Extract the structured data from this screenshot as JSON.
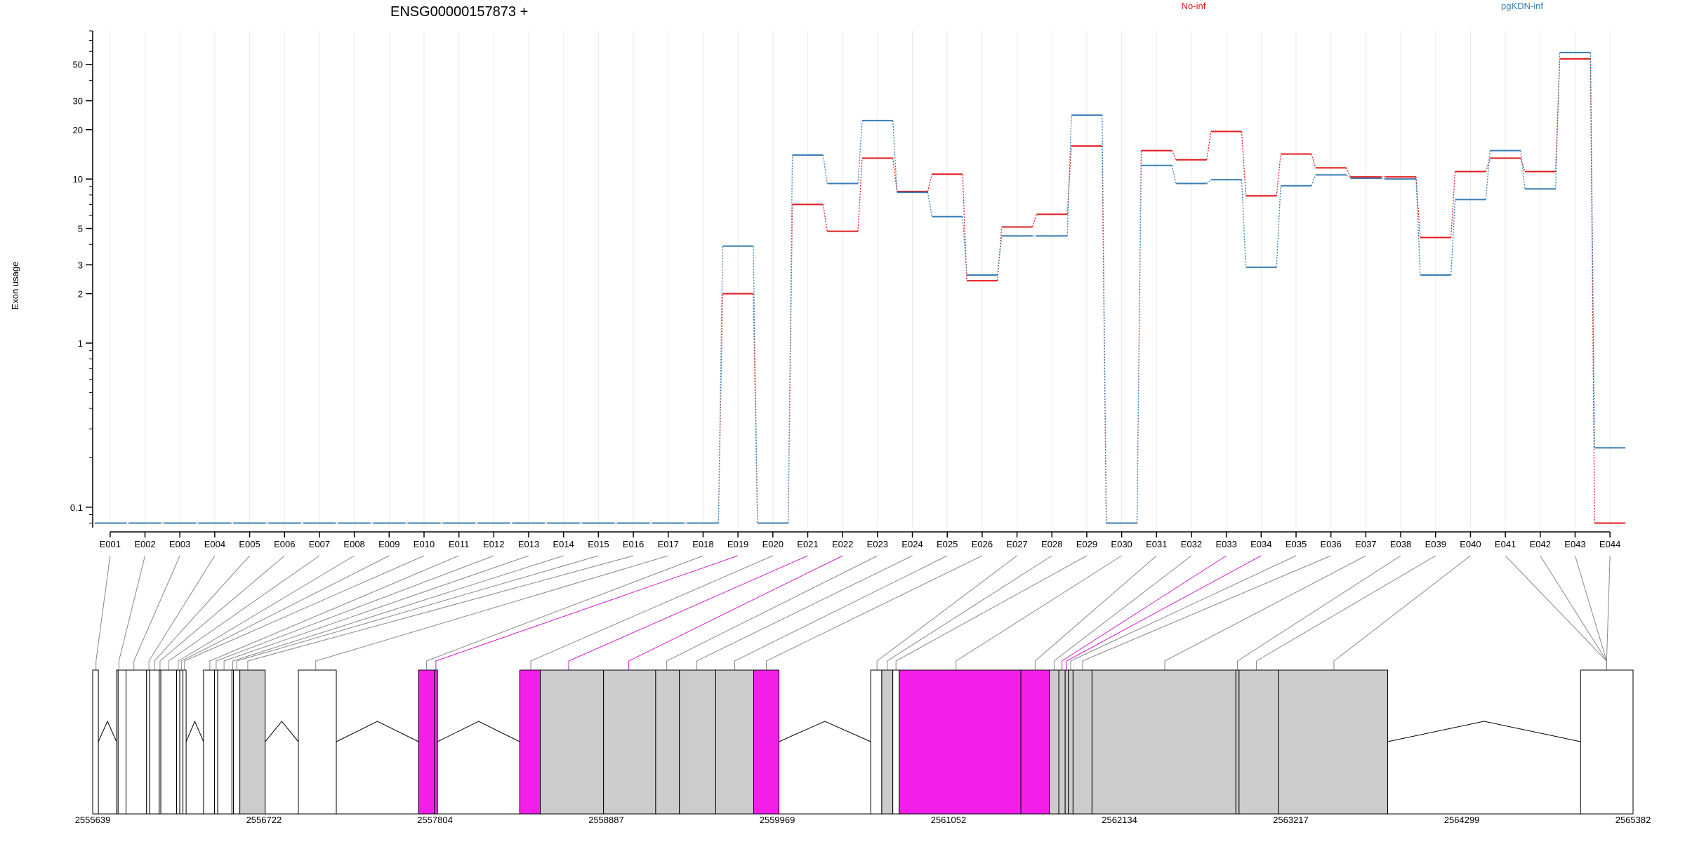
{
  "chart_data": {
    "type": "line",
    "title": "ENSG00000157873 +",
    "ylabel": "Exon usage",
    "xlabel": "",
    "yscale": "log",
    "ylim": [
      0.075,
      80
    ],
    "yticks": [
      "0.1",
      "1",
      "2",
      "3",
      "5",
      "10",
      "20",
      "30",
      "50"
    ],
    "ytick_values": [
      0.1,
      1,
      2,
      3,
      5,
      10,
      20,
      30,
      50
    ],
    "grid": "vertical",
    "legend_placement": "top",
    "categories": [
      "E001",
      "E002",
      "E003",
      "E004",
      "E005",
      "E006",
      "E007",
      "E008",
      "E009",
      "E010",
      "E011",
      "E012",
      "E013",
      "E014",
      "E015",
      "E016",
      "E017",
      "E018",
      "E019",
      "E020",
      "E021",
      "E022",
      "E023",
      "E024",
      "E025",
      "E026",
      "E027",
      "E028",
      "E029",
      "E030",
      "E031",
      "E032",
      "E033",
      "E034",
      "E035",
      "E036",
      "E037",
      "E038",
      "E039",
      "E040",
      "E041",
      "E042",
      "E043",
      "E044"
    ],
    "series": [
      {
        "name": "No-inf",
        "color": "#e41a1c",
        "values": [
          0.08,
          0.08,
          0.08,
          0.08,
          0.08,
          0.08,
          0.08,
          0.08,
          0.08,
          0.08,
          0.08,
          0.08,
          0.08,
          0.08,
          0.08,
          0.08,
          0.08,
          0.08,
          2.0,
          0.08,
          7.0,
          4.8,
          13.4,
          8.4,
          10.7,
          2.4,
          5.1,
          6.1,
          15.9,
          0.08,
          14.9,
          13.1,
          19.5,
          7.9,
          14.2,
          11.7,
          10.3,
          10.3,
          4.4,
          11.1,
          13.4,
          11.1,
          54.0,
          0.08
        ]
      },
      {
        "name": "pgKDN-inf",
        "color": "#377eb8",
        "values": [
          0.08,
          0.08,
          0.08,
          0.08,
          0.08,
          0.08,
          0.08,
          0.08,
          0.08,
          0.08,
          0.08,
          0.08,
          0.08,
          0.08,
          0.08,
          0.08,
          0.08,
          0.08,
          3.9,
          0.08,
          14.0,
          9.4,
          22.7,
          8.3,
          5.9,
          2.6,
          4.5,
          4.5,
          24.5,
          0.08,
          12.1,
          9.4,
          9.9,
          2.9,
          9.1,
          10.6,
          10.1,
          10.0,
          2.6,
          7.5,
          14.9,
          8.7,
          59.0,
          0.23
        ]
      }
    ],
    "gene_model": {
      "coord_ticks": [
        "2555639",
        "2556722",
        "2557804",
        "2558887",
        "2559969",
        "2561052",
        "2562134",
        "2563217",
        "2564299",
        "2565382"
      ],
      "coord_tick_values": [
        2555639,
        2556722,
        2557804,
        2558887,
        2559969,
        2561052,
        2562134,
        2563217,
        2564299,
        2565382
      ],
      "exon_fill_colors": {
        "not_significant": "#ffffff",
        "covered": "#cccccc",
        "significant": "#f31fe8"
      },
      "blocks": [
        [
          2555639,
          2555675,
          "w"
        ],
        [
          2555790,
          2555800,
          "w"
        ],
        [
          2555800,
          2555850,
          "w"
        ],
        [
          2555850,
          2555980,
          "w"
        ],
        [
          2555980,
          2556000,
          "w"
        ],
        [
          2556000,
          2556060,
          "w"
        ],
        [
          2556060,
          2556070,
          "w"
        ],
        [
          2556070,
          2556170,
          "w"
        ],
        [
          2556170,
          2556190,
          "w"
        ],
        [
          2556190,
          2556210,
          "w"
        ],
        [
          2556210,
          2556230,
          "w"
        ],
        [
          2556340,
          2556410,
          "w"
        ],
        [
          2556410,
          2556430,
          "w"
        ],
        [
          2556430,
          2556520,
          "w"
        ],
        [
          2556520,
          2556530,
          "w"
        ],
        [
          2556530,
          2556570,
          "w"
        ],
        [
          2556570,
          2556730,
          "g"
        ],
        [
          2556940,
          2557180,
          "w"
        ],
        [
          2557700,
          2557800,
          "m"
        ],
        [
          2557800,
          2557820,
          "m"
        ],
        [
          2558340,
          2558470,
          "m"
        ],
        [
          2558470,
          2558870,
          "g"
        ],
        [
          2558870,
          2559200,
          "g"
        ],
        [
          2559200,
          2559350,
          "g"
        ],
        [
          2559350,
          2559580,
          "g"
        ],
        [
          2559580,
          2559820,
          "g"
        ],
        [
          2559820,
          2559980,
          "m"
        ],
        [
          2560560,
          2560630,
          "w"
        ],
        [
          2560630,
          2560700,
          "g"
        ],
        [
          2560700,
          2560740,
          "w"
        ],
        [
          2560740,
          2561510,
          "m"
        ],
        [
          2561510,
          2561690,
          "m"
        ],
        [
          2561690,
          2561750,
          "g"
        ],
        [
          2561750,
          2561790,
          "g"
        ],
        [
          2561790,
          2561810,
          "g"
        ],
        [
          2561810,
          2561840,
          "g"
        ],
        [
          2561840,
          2561960,
          "g"
        ],
        [
          2561960,
          2562870,
          "g"
        ],
        [
          2562870,
          2562890,
          "g"
        ],
        [
          2562890,
          2563140,
          "g"
        ],
        [
          2563140,
          2563830,
          "g"
        ],
        [
          2565050,
          2565382,
          "w"
        ]
      ],
      "bin_anchors": [
        2555660,
        2555805,
        2555900,
        2555995,
        2556030,
        2556065,
        2556120,
        2556180,
        2556200,
        2556220,
        2556380,
        2556420,
        2556470,
        2556525,
        2556550,
        2556620,
        2557050,
        2557750,
        2557810,
        2558410,
        2558650,
        2559030,
        2559270,
        2559460,
        2559700,
        2559900,
        2560600,
        2560665,
        2560720,
        2561100,
        2561600,
        2561720,
        2561770,
        2561800,
        2561825,
        2561900,
        2562420,
        2562880,
        2563000,
        2563490,
        2565215
      ]
    }
  }
}
